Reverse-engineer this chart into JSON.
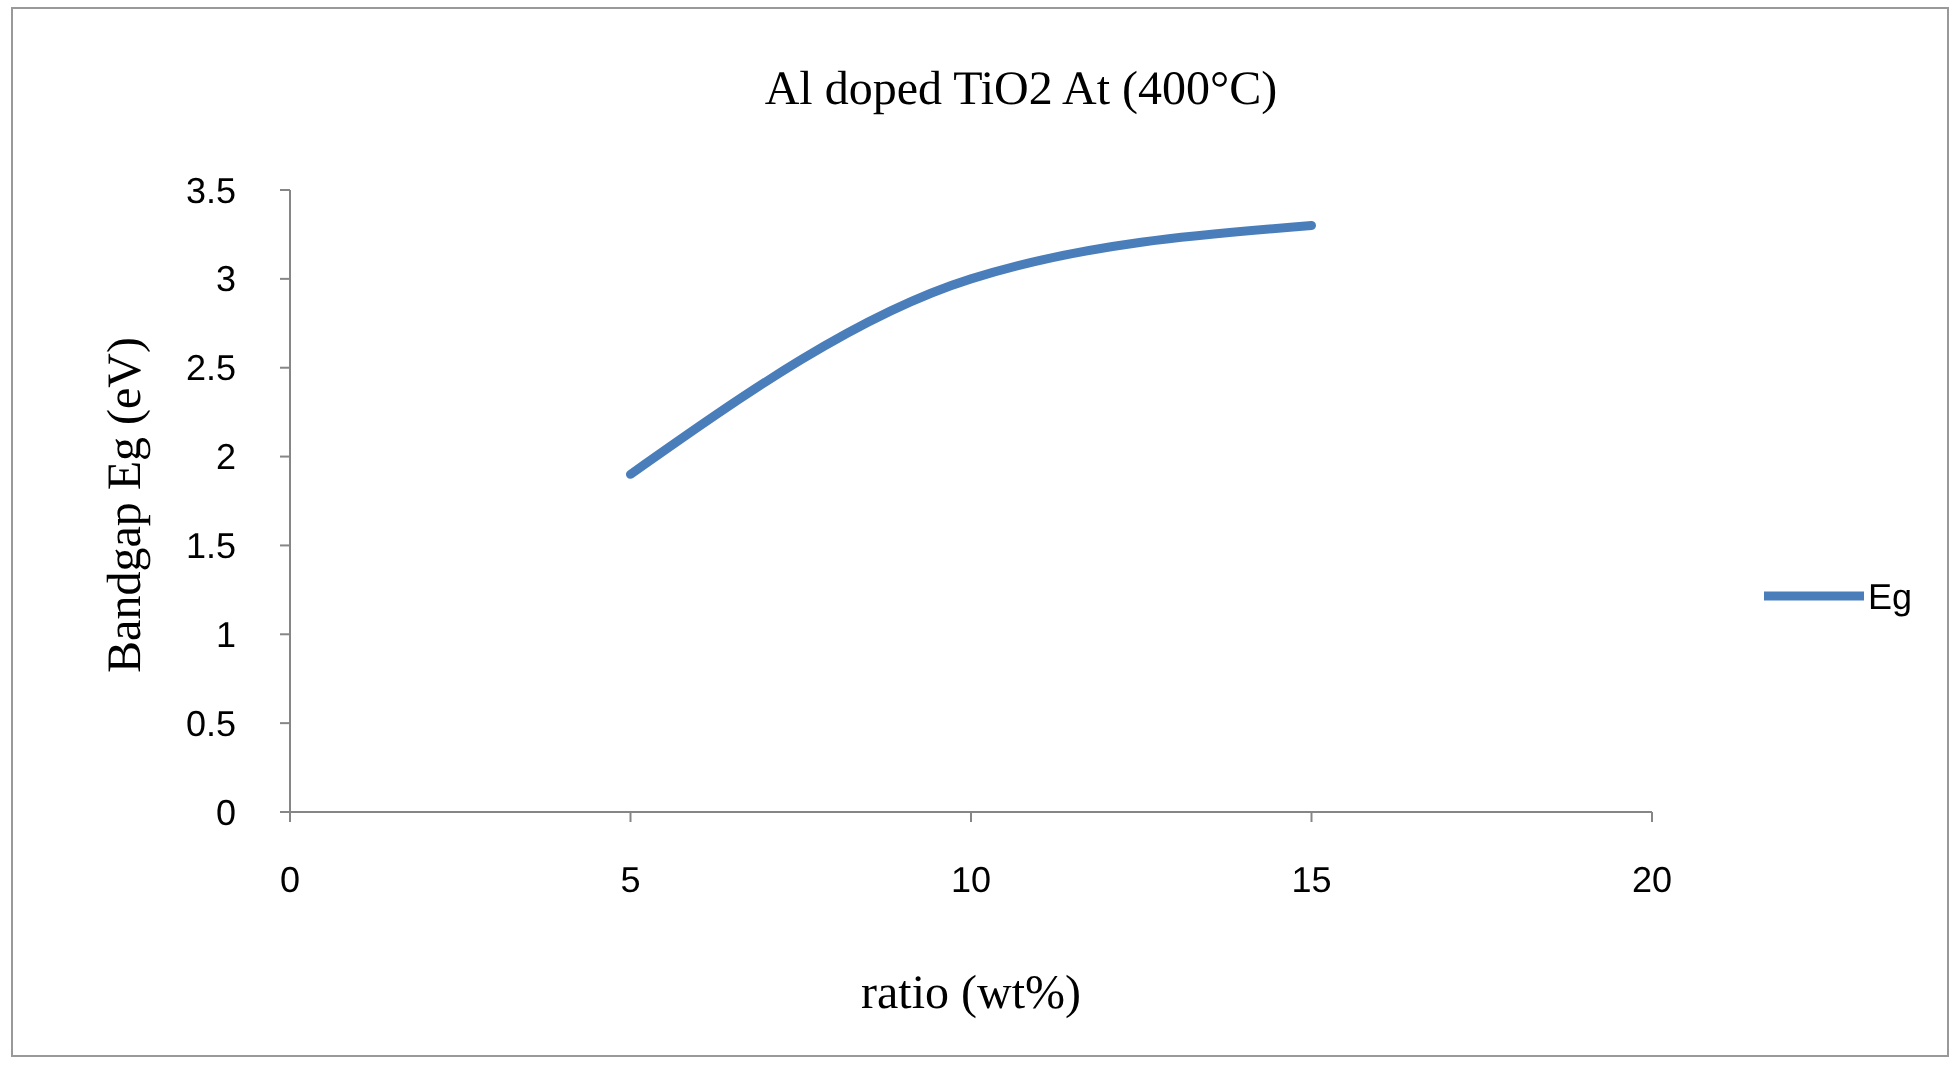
{
  "chart_data": {
    "type": "line",
    "title": "Al doped TiO2 At (400°C)",
    "xlabel": "ratio (wt%)",
    "ylabel": "Bandgap Eg (eV)",
    "x": [
      5,
      10,
      15
    ],
    "series": [
      {
        "name": "Eg",
        "color": "#4a7ebb",
        "values": [
          1.9,
          3.0,
          3.3
        ]
      }
    ],
    "xlim": [
      0,
      20
    ],
    "xticks": [
      0,
      5,
      10,
      15,
      20
    ],
    "ylim": [
      0,
      3.5
    ],
    "yticks": [
      0,
      0.5,
      1,
      1.5,
      2,
      2.5,
      3,
      3.5
    ],
    "grid": false,
    "legend": "right",
    "marker": "none",
    "line_style": "solid"
  }
}
